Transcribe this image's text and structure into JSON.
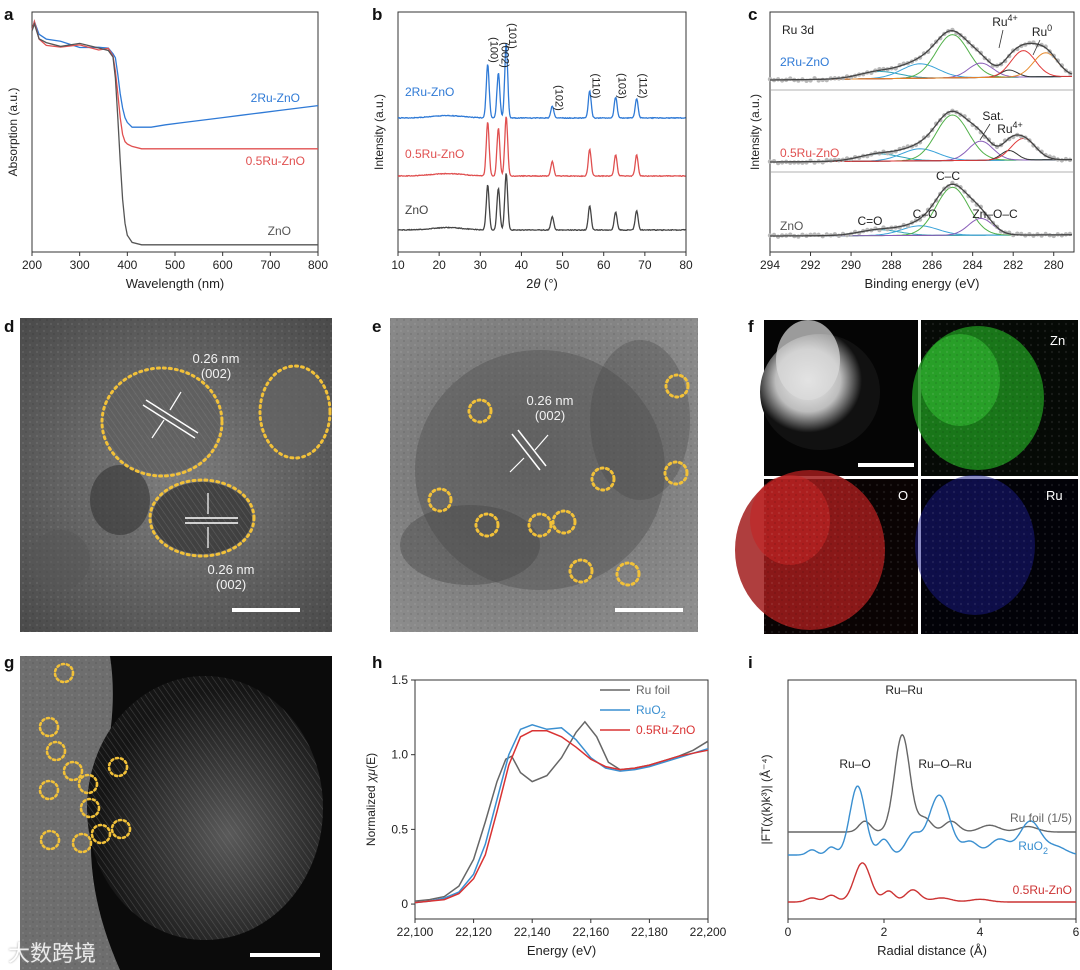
{
  "panel_labels": {
    "a": "a",
    "b": "b",
    "c": "c",
    "d": "d",
    "e": "e",
    "f": "f",
    "g": "g",
    "h": "h",
    "i": "i"
  },
  "chart_data": [
    {
      "id": "a",
      "type": "line",
      "xlabel": "Wavelength (nm)",
      "ylabel": "Absorption (a.u.)",
      "xlim": [
        200,
        800
      ],
      "xticks": [
        "200",
        "300",
        "400",
        "500",
        "600",
        "700",
        "800"
      ],
      "grid": false,
      "series": [
        {
          "name": "2Ru-ZnO",
          "color": "#2f7ad6",
          "x": [
            200,
            205,
            215,
            230,
            260,
            300,
            340,
            360,
            370,
            375,
            380,
            385,
            390,
            395,
            400,
            410,
            430,
            450,
            480,
            520,
            560,
            600,
            640,
            680,
            720,
            760,
            800
          ],
          "y": [
            0.93,
            0.96,
            0.9,
            0.88,
            0.87,
            0.86,
            0.85,
            0.84,
            0.83,
            0.8,
            0.74,
            0.66,
            0.6,
            0.56,
            0.54,
            0.52,
            0.52,
            0.52,
            0.53,
            0.54,
            0.55,
            0.56,
            0.57,
            0.58,
            0.59,
            0.6,
            0.61
          ]
        },
        {
          "name": "0.5Ru-ZnO",
          "color": "#e05050",
          "x": [
            200,
            205,
            215,
            230,
            260,
            300,
            340,
            360,
            370,
            375,
            380,
            385,
            390,
            395,
            400,
            410,
            430,
            450,
            480,
            520,
            560,
            600,
            640,
            680,
            720,
            760,
            800
          ],
          "y": [
            0.92,
            0.96,
            0.89,
            0.87,
            0.86,
            0.86,
            0.85,
            0.84,
            0.82,
            0.76,
            0.66,
            0.56,
            0.49,
            0.46,
            0.45,
            0.44,
            0.43,
            0.43,
            0.43,
            0.43,
            0.43,
            0.43,
            0.43,
            0.43,
            0.43,
            0.43,
            0.43
          ]
        },
        {
          "name": "ZnO",
          "color": "#555555",
          "x": [
            200,
            205,
            215,
            230,
            260,
            300,
            340,
            360,
            370,
            375,
            380,
            385,
            390,
            395,
            400,
            410,
            430,
            450,
            480,
            520,
            560,
            600,
            640,
            680,
            720,
            760,
            800
          ],
          "y": [
            0.92,
            0.95,
            0.89,
            0.87,
            0.86,
            0.86,
            0.85,
            0.84,
            0.81,
            0.72,
            0.56,
            0.38,
            0.22,
            0.12,
            0.07,
            0.04,
            0.03,
            0.03,
            0.03,
            0.03,
            0.03,
            0.03,
            0.03,
            0.03,
            0.03,
            0.03,
            0.03
          ]
        }
      ]
    },
    {
      "id": "b",
      "type": "line",
      "xlabel_pre": "2",
      "xlabel_theta": "θ",
      "xlabel_post": " (°)",
      "ylabel": "Intensity (a.u.)",
      "xlim": [
        10,
        80
      ],
      "xticks": [
        "10",
        "20",
        "30",
        "40",
        "50",
        "60",
        "70",
        "80"
      ],
      "grid": false,
      "peaks": [
        {
          "label": "(100)",
          "x": 31.8
        },
        {
          "label": "(002)",
          "x": 34.4
        },
        {
          "label": "(101)",
          "x": 36.3
        },
        {
          "label": "(102)",
          "x": 47.5
        },
        {
          "label": "(110)",
          "x": 56.6
        },
        {
          "label": "(103)",
          "x": 62.9
        },
        {
          "label": "(112)",
          "x": 68.0
        }
      ],
      "series": [
        {
          "name": "2Ru-ZnO",
          "color": "#2f7ad6",
          "offset": 2.0,
          "peak_heights": [
            0.9,
            0.75,
            1.25,
            0.2,
            0.45,
            0.35,
            0.32
          ]
        },
        {
          "name": "0.5Ru-ZnO",
          "color": "#e05050",
          "offset": 1.0,
          "peak_heights": [
            0.9,
            0.8,
            1.0,
            0.25,
            0.45,
            0.35,
            0.35
          ]
        },
        {
          "name": "ZnO",
          "color": "#444444",
          "offset": 0.0,
          "peak_heights": [
            0.75,
            0.7,
            0.95,
            0.22,
            0.4,
            0.3,
            0.32
          ]
        }
      ]
    },
    {
      "id": "c",
      "type": "line",
      "title": "Ru 3d",
      "xlabel": "Binding energy (eV)",
      "ylabel": "Intensity (a.u.)",
      "xlim": [
        294,
        279
      ],
      "xticks": [
        "294",
        "292",
        "290",
        "288",
        "286",
        "284",
        "282",
        "280"
      ],
      "grid": false,
      "annotations": [
        {
          "text": "Ru",
          "sup": "4+",
          "x": 281.8,
          "row": "top"
        },
        {
          "text": "Ru",
          "sup": "0",
          "x": 280.2,
          "row": "top"
        },
        {
          "text": "Sat.",
          "x": 283.0,
          "row": "mid"
        },
        {
          "text": "Ru",
          "sup": "4+",
          "x": 281.2,
          "row": "mid2"
        },
        {
          "text": "C–C",
          "x": 285.0,
          "row": "bot1"
        },
        {
          "text": "C–O",
          "x": 286.6,
          "row": "bot2"
        },
        {
          "text": "C=O",
          "x": 288.9,
          "row": "bot3"
        },
        {
          "text": "Zn–O–C",
          "x": 283.2,
          "row": "bot2"
        }
      ],
      "series": [
        {
          "name": "2Ru-ZnO",
          "color": "#2f7ad6"
        },
        {
          "name": "0.5Ru-ZnO",
          "color": "#e05050"
        },
        {
          "name": "ZnO",
          "color": "#555555"
        }
      ]
    },
    {
      "id": "h",
      "type": "line",
      "xlabel": "Energy (eV)",
      "ylabel_pre": "Normalized ",
      "ylabel_chi": "χμ",
      "ylabel_post": "(E)",
      "xlim": [
        22100,
        22200
      ],
      "ylim": [
        -0.1,
        1.5
      ],
      "xticks": [
        "22,100",
        "22,120",
        "22,140",
        "22,160",
        "22,180",
        "22,200"
      ],
      "yticks": [
        "0",
        "0.5",
        "1.0",
        "1.5"
      ],
      "legend": "top-right",
      "grid": false,
      "series": [
        {
          "name": "Ru foil",
          "color": "#666666",
          "x": [
            22100,
            22105,
            22110,
            22115,
            22120,
            22124,
            22128,
            22131,
            22133,
            22136,
            22140,
            22145,
            22150,
            22155,
            22158,
            22162,
            22166,
            22170,
            22175,
            22180,
            22185,
            22190,
            22195,
            22200
          ],
          "y": [
            0.02,
            0.03,
            0.05,
            0.12,
            0.3,
            0.55,
            0.82,
            0.97,
            0.99,
            0.88,
            0.82,
            0.86,
            0.98,
            1.15,
            1.22,
            1.12,
            0.95,
            0.9,
            0.91,
            0.93,
            0.96,
            0.99,
            1.03,
            1.09
          ]
        },
        {
          "name": "RuO2",
          "name_base": "RuO",
          "name_sub": "2",
          "color": "#3a8fd0",
          "x": [
            22100,
            22105,
            22110,
            22115,
            22120,
            22124,
            22128,
            22132,
            22136,
            22140,
            22145,
            22150,
            22155,
            22160,
            22165,
            22170,
            22175,
            22180,
            22185,
            22190,
            22195,
            22200
          ],
          "y": [
            0.01,
            0.02,
            0.04,
            0.08,
            0.2,
            0.4,
            0.7,
            1.0,
            1.17,
            1.2,
            1.17,
            1.18,
            1.1,
            0.98,
            0.91,
            0.89,
            0.9,
            0.92,
            0.95,
            0.98,
            1.01,
            1.04
          ]
        },
        {
          "name": "0.5Ru-ZnO",
          "color": "#d93333",
          "x": [
            22100,
            22105,
            22110,
            22115,
            22120,
            22124,
            22128,
            22132,
            22136,
            22140,
            22145,
            22150,
            22155,
            22160,
            22165,
            22170,
            22175,
            22180,
            22185,
            22190,
            22195,
            22200
          ],
          "y": [
            0.01,
            0.02,
            0.03,
            0.07,
            0.17,
            0.33,
            0.62,
            0.93,
            1.12,
            1.16,
            1.16,
            1.12,
            1.05,
            0.97,
            0.92,
            0.9,
            0.91,
            0.93,
            0.96,
            0.99,
            1.01,
            1.03
          ]
        }
      ]
    },
    {
      "id": "i",
      "type": "line",
      "xlabel": "Radial distance (Å)",
      "ylabel": "|FT(χ(k)k³)| (Å⁻⁴)",
      "xlim": [
        0,
        6
      ],
      "xticks": [
        "0",
        "2",
        "4",
        "6"
      ],
      "grid": false,
      "annotations": [
        {
          "text": "Ru–Ru",
          "x": 2.35
        },
        {
          "text": "Ru–O",
          "x": 1.45
        },
        {
          "text": "Ru–O–Ru",
          "x": 3.1
        }
      ],
      "series": [
        {
          "name": "Ru foil (1/5)",
          "color": "#666666"
        },
        {
          "name": "RuO2",
          "name_base": "RuO",
          "name_sub": "2",
          "color": "#3a8fd0"
        },
        {
          "name": "0.5Ru-ZnO",
          "color": "#cc3333"
        }
      ]
    }
  ],
  "micrographs": {
    "d": {
      "labels": [
        {
          "text": "0.26 nm"
        },
        {
          "text": "(002)"
        },
        {
          "text": "0.26 nm"
        },
        {
          "text": "(002)"
        }
      ]
    },
    "e": {
      "labels": [
        {
          "text": "0.26 nm"
        },
        {
          "text": "(002)"
        }
      ]
    },
    "f": {
      "elements": [
        "Zn",
        "O",
        "Ru"
      ]
    }
  },
  "watermark": "大数跨境"
}
